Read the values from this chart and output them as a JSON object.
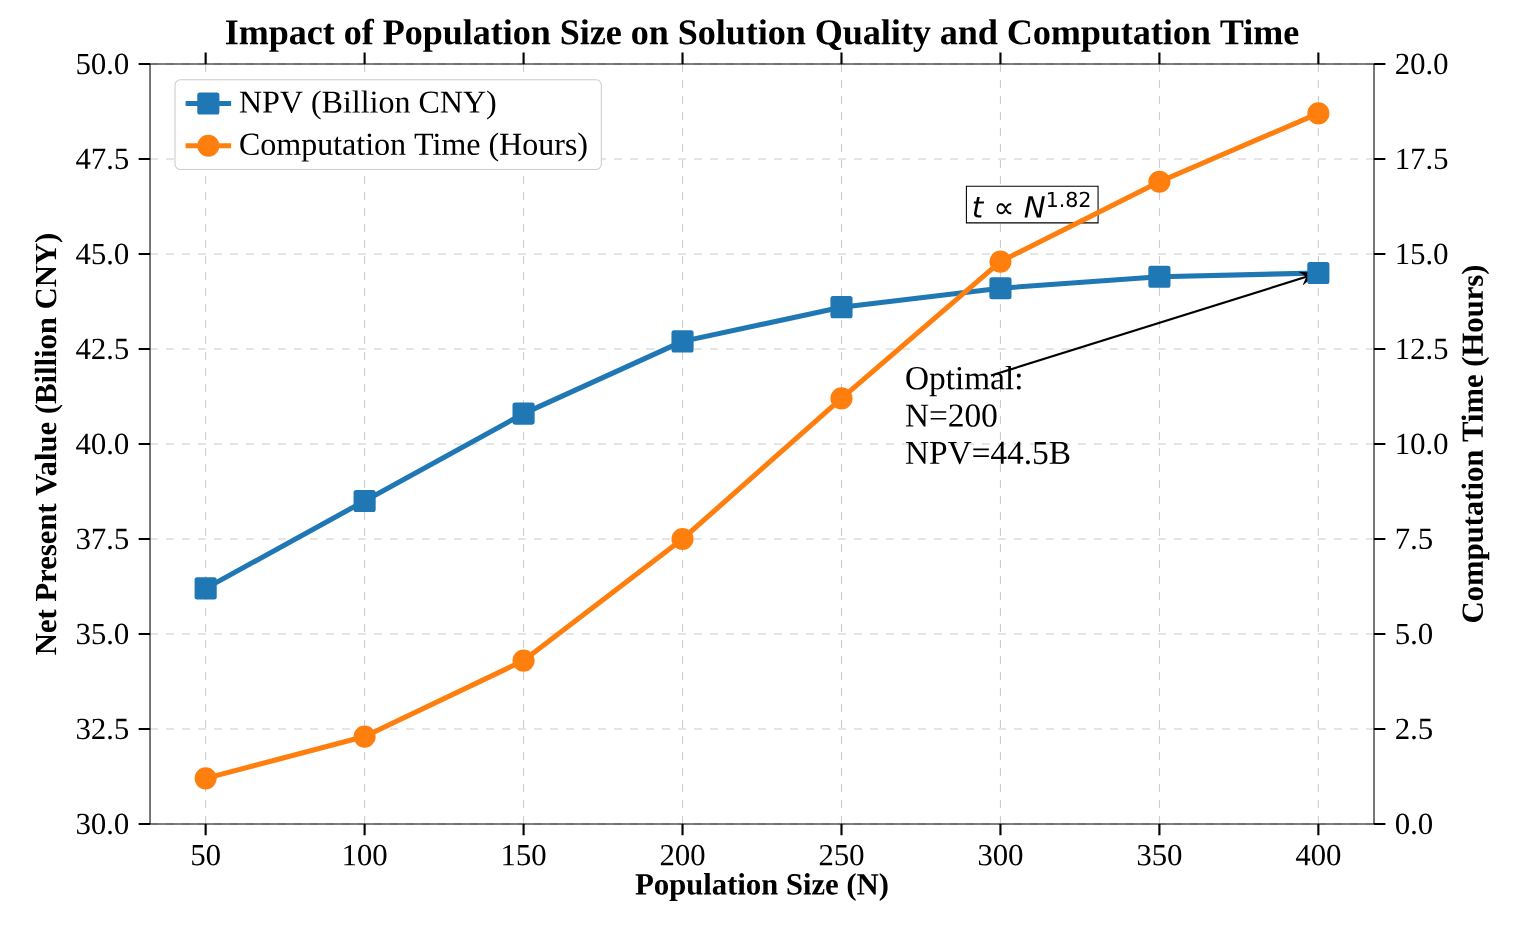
{
  "chart_data": {
    "type": "line",
    "title": "Impact of Population Size on Solution Quality and Computation Time",
    "xlabel": "Population Size (N)",
    "ylabel": "Net Present Value (Billion CNY)",
    "y2label": "Computation Time (Hours)",
    "x": [
      50,
      100,
      150,
      200,
      250,
      300,
      350,
      400
    ],
    "series": [
      {
        "name": "NPV (Billion CNY)",
        "color": "#1f77b4",
        "marker": "square",
        "values": [
          36.2,
          38.5,
          40.8,
          42.7,
          43.6,
          44.1,
          44.4,
          44.5
        ]
      },
      {
        "name": "Computation Time (Hours)",
        "color": "#ff7f0e",
        "marker": "circle",
        "axis": "y2",
        "values": [
          1.2,
          2.3,
          4.3,
          7.5,
          11.2,
          14.8,
          16.9,
          18.7
        ]
      }
    ],
    "xlim": [
      32.5,
      417.5
    ],
    "xticks": [
      50,
      100,
      150,
      200,
      250,
      300,
      350,
      400
    ],
    "ylim": [
      30,
      50
    ],
    "yticks": [
      {
        "value": 30,
        "label": "30.0"
      },
      {
        "value": 32.5,
        "label": "32.5"
      },
      {
        "value": 35,
        "label": "35.0"
      },
      {
        "value": 37.5,
        "label": "37.5"
      },
      {
        "value": 40,
        "label": "40.0"
      },
      {
        "value": 42.5,
        "label": "42.5"
      },
      {
        "value": 45,
        "label": "45.0"
      },
      {
        "value": 47.5,
        "label": "47.5"
      },
      {
        "value": 50,
        "label": "50.0"
      }
    ],
    "y2lim": [
      0,
      20
    ],
    "y2ticks": [
      {
        "value": 0,
        "label": "0.0"
      },
      {
        "value": 2.5,
        "label": "2.5"
      },
      {
        "value": 5,
        "label": "5.0"
      },
      {
        "value": 7.5,
        "label": "7.5"
      },
      {
        "value": 10,
        "label": "10.0"
      },
      {
        "value": 12.5,
        "label": "12.5"
      },
      {
        "value": 15,
        "label": "15.0"
      },
      {
        "value": 17.5,
        "label": "17.5"
      },
      {
        "value": 20,
        "label": "20.0"
      }
    ],
    "annotations": [
      {
        "text": "Optimal: N=200 NPV=44.5B",
        "x": 400,
        "y": 44.5
      },
      "*t* ∝ *N*$^{1.82}$"
    ],
    "grid": true,
    "legend": "top left",
    "line_style": "solid"
  }
}
